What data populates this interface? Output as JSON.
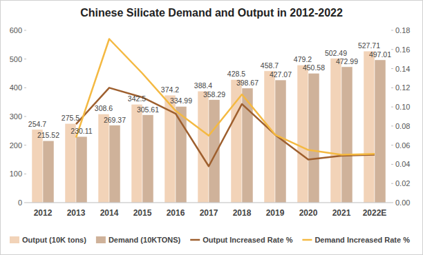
{
  "chart_data": {
    "type": "bar",
    "title": "Chinese Silicate Demand and Output in 2012-2022",
    "categories": [
      "2012",
      "2013",
      "2014",
      "2015",
      "2016",
      "2017",
      "2018",
      "2019",
      "2020",
      "2021",
      "2022E"
    ],
    "series": [
      {
        "name": "Output (10K tons)",
        "type": "bar",
        "color": "#f2d3b8",
        "data_labels": true,
        "values": [
          254.7,
          275.5,
          308.6,
          342.5,
          374.2,
          388.4,
          428.5,
          458.7,
          479.2,
          502.49,
          527.71
        ]
      },
      {
        "name": "Demand (10KTONS)",
        "type": "bar",
        "color": "#cfb29a",
        "data_labels": true,
        "values": [
          215.52,
          230.11,
          269.37,
          305.61,
          334.99,
          358.29,
          398.67,
          427.07,
          450.58,
          472.99,
          497.01
        ]
      },
      {
        "name": "Output Increased Rate %",
        "type": "line",
        "axis": "y2",
        "color": "#9e5f2e",
        "data_labels": false,
        "values": [
          null,
          0.082,
          0.12,
          0.11,
          0.093,
          0.038,
          0.103,
          0.071,
          0.045,
          0.049,
          0.05
        ]
      },
      {
        "name": "Demand Increased Rate %",
        "type": "line",
        "axis": "y2",
        "color": "#f4b942",
        "data_labels": false,
        "values": [
          null,
          0.068,
          0.171,
          0.135,
          0.096,
          0.07,
          0.113,
          0.071,
          0.055,
          0.05,
          0.051
        ]
      }
    ],
    "ylim": [
      0,
      600
    ],
    "yticks": [
      0,
      100,
      200,
      300,
      400,
      500,
      600
    ],
    "y2lim": [
      0,
      0.18
    ],
    "y2ticks": [
      {
        "value": 0,
        "label": "0.00"
      },
      {
        "value": 0.02,
        "label": "0.02"
      },
      {
        "value": 0.04,
        "label": "0.04"
      },
      {
        "value": 0.06,
        "label": "0.06"
      },
      {
        "value": 0.08,
        "label": "0.08"
      },
      {
        "value": 0.1,
        "label": "0.10"
      },
      {
        "value": 0.12,
        "label": "0.12"
      },
      {
        "value": 0.14,
        "label": "0.14"
      },
      {
        "value": 0.16,
        "label": "0.16"
      },
      {
        "value": 0.18,
        "label": "0.18"
      }
    ],
    "grid": false,
    "legend": "bottom"
  }
}
